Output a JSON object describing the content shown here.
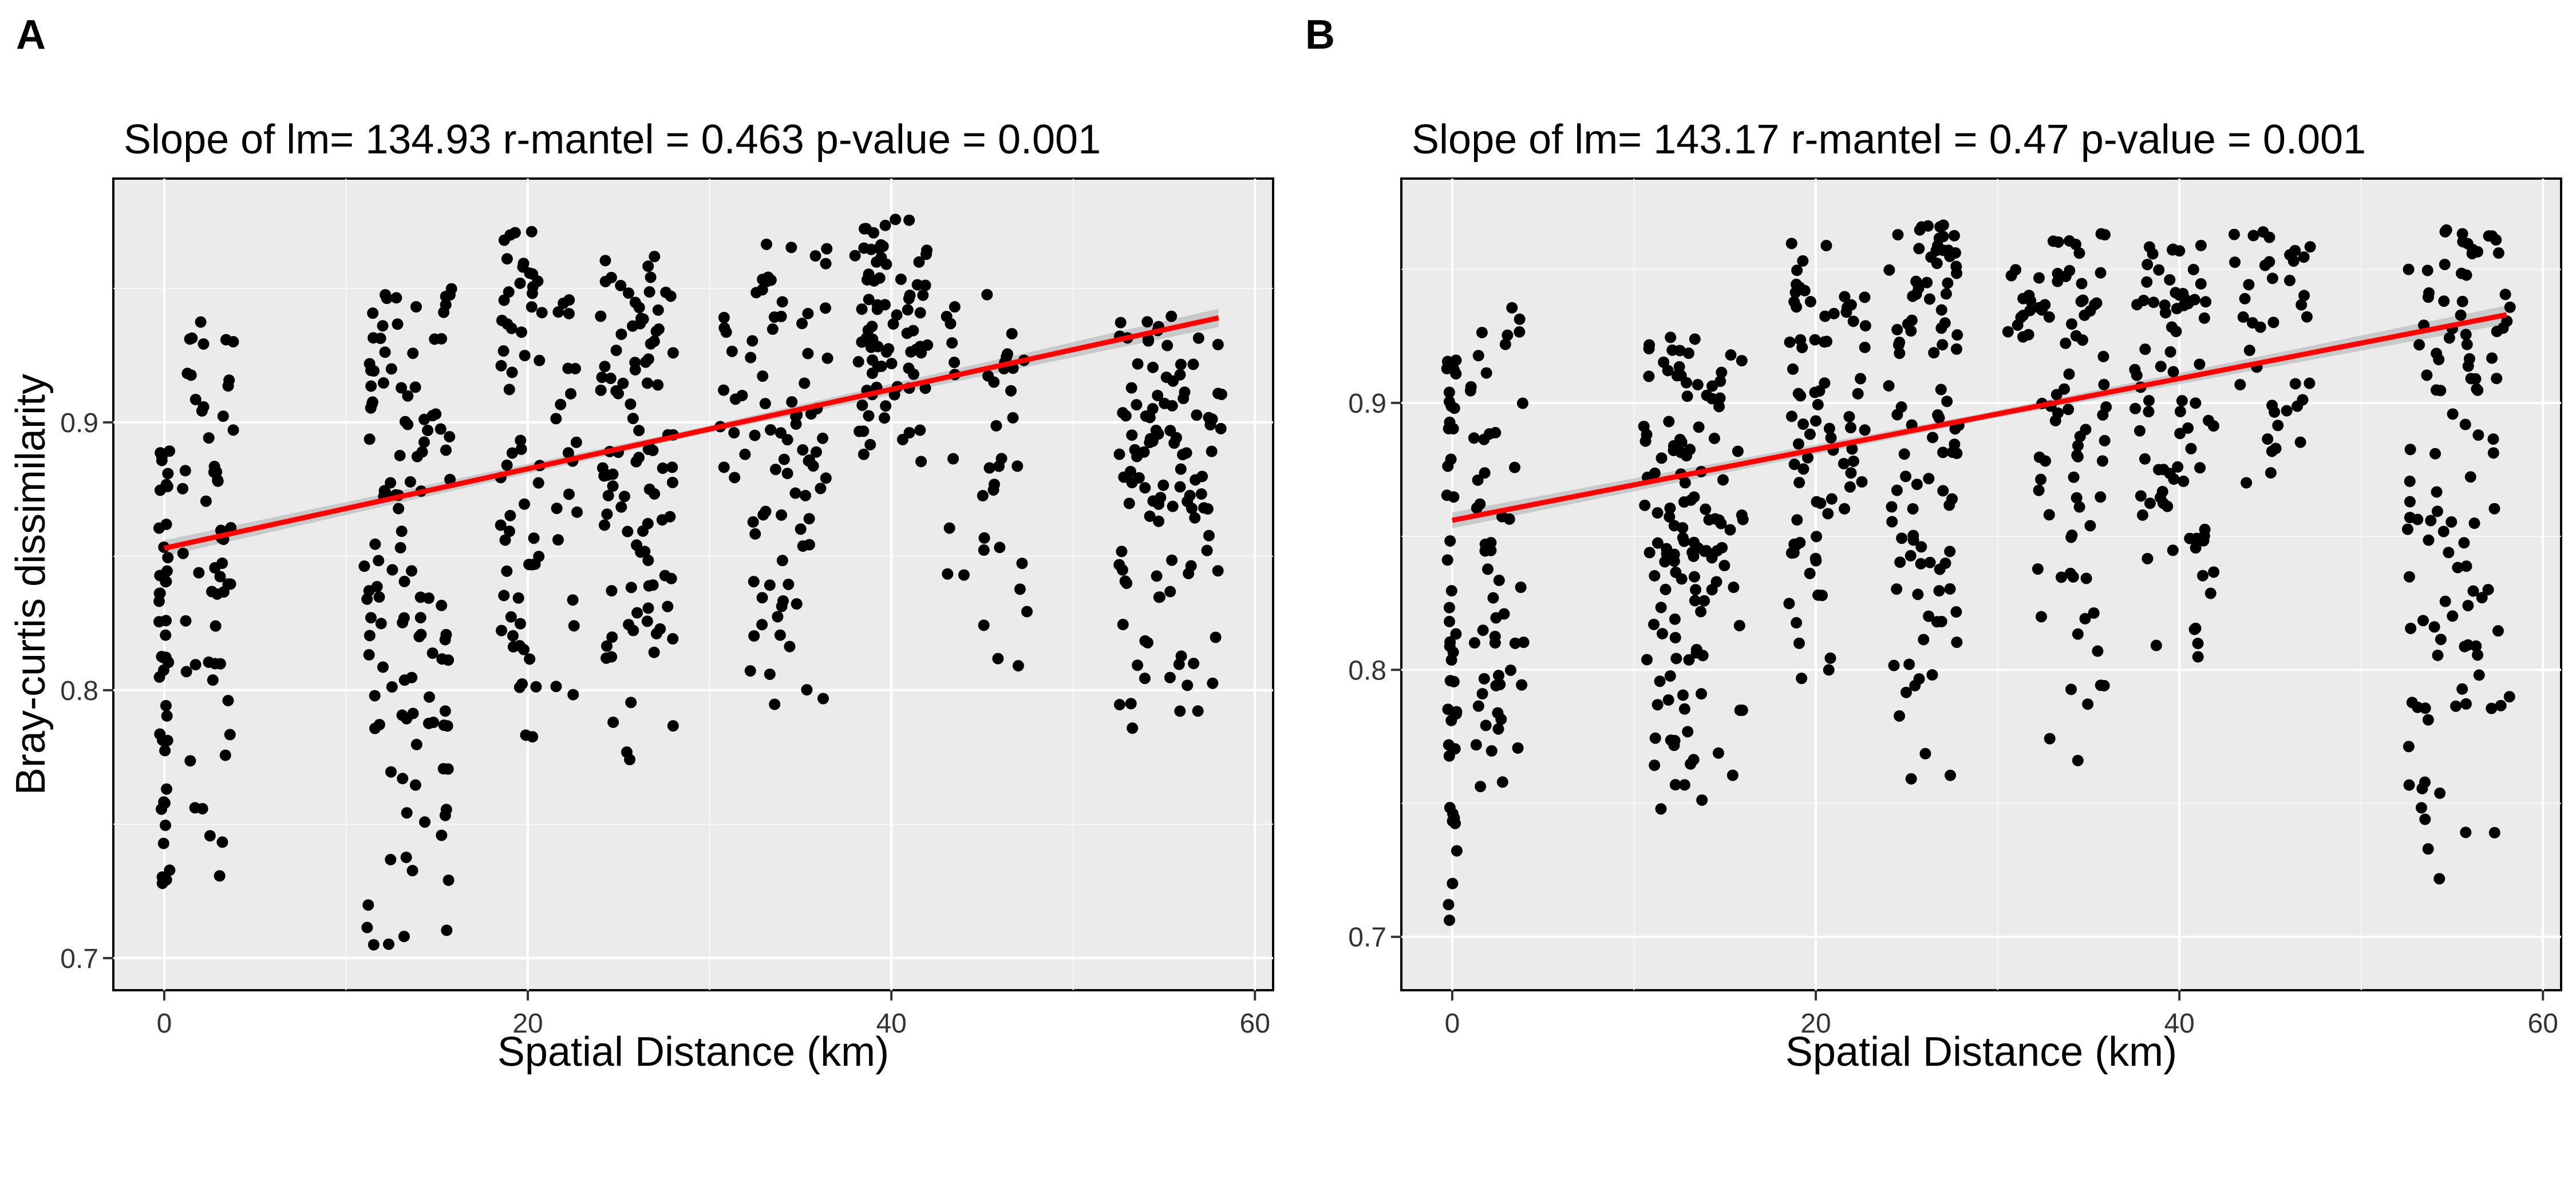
{
  "panels": [
    {
      "tag": "A",
      "title": "Slope of lm= 134.93  r-mantel = 0.463 p-value = 0.001"
    },
    {
      "tag": "B",
      "title": "Slope of lm= 143.17  r-mantel = 0.47 p-value = 0.001"
    }
  ],
  "chart_data": [
    {
      "type": "scatter",
      "panel": "A",
      "title": "Slope of lm= 134.93  r-mantel = 0.463 p-value = 0.001",
      "xlabel": "Spatial Distance (km)",
      "ylabel": "Bray-curtis dissimilarity",
      "xlim": [
        -2.8,
        61.0
      ],
      "ylim": [
        0.688,
        0.991
      ],
      "x_ticks": [
        0,
        20,
        40,
        60
      ],
      "y_ticks": [
        0.7,
        0.8,
        0.9
      ],
      "x_tick_labels": [
        "0",
        "20",
        "40",
        "60"
      ],
      "y_tick_labels": [
        "0.7",
        "0.8",
        "0.9"
      ],
      "grid": true,
      "fit": {
        "type": "lm",
        "color": "#ff0000",
        "x0": 0,
        "x1": 58,
        "y0": 0.853,
        "y1": 0.939
      },
      "point_clusters": [
        {
          "x": [
            -0.3,
            0.3
          ],
          "y": [
            0.7,
            0.89
          ],
          "n": 45
        },
        {
          "x": [
            1.0,
            3.8
          ],
          "y": [
            0.727,
            0.94
          ],
          "n": 55
        },
        {
          "x": [
            11.0,
            15.8
          ],
          "y": [
            0.702,
            0.95
          ],
          "n": 120
        },
        {
          "x": [
            18.5,
            20.8
          ],
          "y": [
            0.758,
            0.972
          ],
          "n": 60
        },
        {
          "x": [
            21.5,
            22.8
          ],
          "y": [
            0.773,
            0.95
          ],
          "n": 20
        },
        {
          "x": [
            24.0,
            28.0
          ],
          "y": [
            0.774,
            0.962
          ],
          "n": 100
        },
        {
          "x": [
            30.5,
            32.0
          ],
          "y": [
            0.87,
            0.94
          ],
          "n": 12
        },
        {
          "x": [
            32.2,
            36.5
          ],
          "y": [
            0.79,
            0.968
          ],
          "n": 75
        },
        {
          "x": [
            38.0,
            42.0
          ],
          "y": [
            0.882,
            0.976
          ],
          "n": 80
        },
        {
          "x": [
            43.0,
            44.0
          ],
          "y": [
            0.83,
            0.96
          ],
          "n": 10
        },
        {
          "x": [
            45.0,
            47.5
          ],
          "y": [
            0.797,
            0.96
          ],
          "n": 30
        },
        {
          "x": [
            52.5,
            58.2
          ],
          "y": [
            0.783,
            0.94
          ],
          "n": 110
        }
      ]
    },
    {
      "type": "scatter",
      "panel": "B",
      "title": "Slope of lm= 143.17  r-mantel = 0.47 p-value = 0.001",
      "xlabel": "Spatial Distance (km)",
      "ylabel": "",
      "xlim": [
        -2.8,
        61.0
      ],
      "ylim": [
        0.68,
        0.984
      ],
      "x_ticks": [
        0,
        20,
        40,
        60
      ],
      "y_ticks": [
        0.7,
        0.8,
        0.9
      ],
      "x_tick_labels": [
        "0",
        "20",
        "40",
        "60"
      ],
      "y_tick_labels": [
        "0.7",
        "0.8",
        "0.9"
      ],
      "grid": true,
      "fit": {
        "type": "lm",
        "color": "#ff0000",
        "x0": 0,
        "x1": 58,
        "y0": 0.856,
        "y1": 0.933
      },
      "point_clusters": [
        {
          "x": [
            -0.3,
            0.3
          ],
          "y": [
            0.696,
            0.917
          ],
          "n": 45
        },
        {
          "x": [
            1.0,
            4.0
          ],
          "y": [
            0.743,
            0.936
          ],
          "n": 55
        },
        {
          "x": [
            10.5,
            16.0
          ],
          "y": [
            0.744,
            0.925
          ],
          "n": 130
        },
        {
          "x": [
            18.5,
            21.0
          ],
          "y": [
            0.788,
            0.962
          ],
          "n": 60
        },
        {
          "x": [
            21.5,
            23.0
          ],
          "y": [
            0.83,
            0.94
          ],
          "n": 20
        },
        {
          "x": [
            24.0,
            28.0
          ],
          "y": [
            0.75,
            0.967
          ],
          "n": 100
        },
        {
          "x": [
            30.5,
            32.0
          ],
          "y": [
            0.92,
            0.95
          ],
          "n": 12
        },
        {
          "x": [
            32.2,
            36.0
          ],
          "y": [
            0.755,
            0.97
          ],
          "n": 75
        },
        {
          "x": [
            37.5,
            42.0
          ],
          "y": [
            0.798,
            0.96
          ],
          "n": 80
        },
        {
          "x": [
            43.0,
            47.5
          ],
          "y": [
            0.87,
            0.965
          ],
          "n": 40
        },
        {
          "x": [
            52.5,
            58.2
          ],
          "y": [
            0.72,
            0.965
          ],
          "n": 110
        }
      ]
    }
  ]
}
